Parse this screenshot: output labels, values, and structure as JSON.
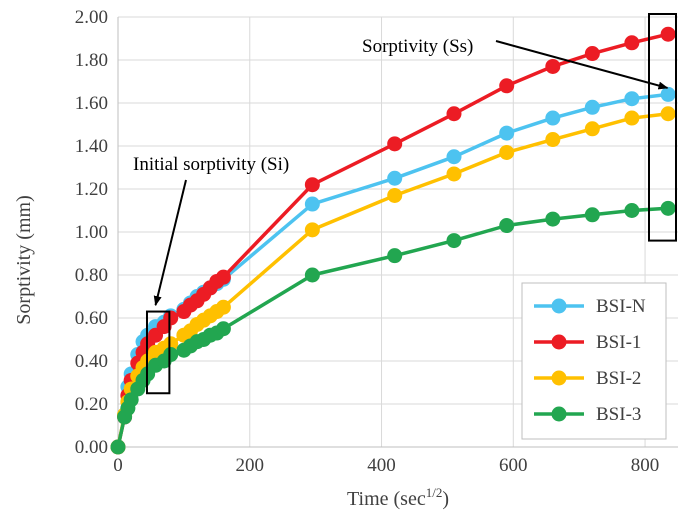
{
  "chart_data": {
    "type": "line",
    "title": "",
    "xlabel_main": "Time (sec",
    "xlabel_sup": "1/2",
    "xlabel_close": ")",
    "ylabel": "Sorptivity (mm)",
    "xlim": [
      0,
      850
    ],
    "ylim": [
      0,
      2.0
    ],
    "xticks": [
      "0",
      "200",
      "400",
      "600",
      "800"
    ],
    "yticks": [
      "0.00",
      "0.20",
      "0.40",
      "0.60",
      "0.80",
      "1.00",
      "1.20",
      "1.40",
      "1.60",
      "1.80",
      "2.00"
    ],
    "grid": true,
    "legend_position": "bottom-right",
    "series": [
      {
        "name": "BSI-N",
        "color": "#4dc3f0",
        "x": [
          0,
          10,
          15,
          20,
          30,
          38,
          45,
          57,
          70,
          80,
          100,
          110,
          120,
          130,
          140,
          150,
          160,
          295,
          420,
          510,
          590,
          660,
          720,
          780,
          835
        ],
        "y": [
          0,
          0.15,
          0.28,
          0.34,
          0.43,
          0.49,
          0.52,
          0.56,
          0.58,
          0.61,
          0.64,
          0.67,
          0.7,
          0.72,
          0.74,
          0.76,
          0.78,
          1.13,
          1.25,
          1.35,
          1.46,
          1.53,
          1.58,
          1.62,
          1.64
        ]
      },
      {
        "name": "BSI-1",
        "color": "#ec1c24",
        "x": [
          0,
          10,
          15,
          20,
          30,
          38,
          45,
          57,
          70,
          80,
          100,
          110,
          120,
          130,
          140,
          150,
          160,
          295,
          420,
          510,
          590,
          660,
          720,
          780,
          835
        ],
        "y": [
          0,
          0.14,
          0.24,
          0.31,
          0.39,
          0.44,
          0.48,
          0.52,
          0.56,
          0.6,
          0.63,
          0.66,
          0.68,
          0.71,
          0.74,
          0.77,
          0.79,
          1.22,
          1.41,
          1.55,
          1.68,
          1.77,
          1.83,
          1.88,
          1.92
        ]
      },
      {
        "name": "BSI-2",
        "color": "#ffc000",
        "x": [
          0,
          10,
          15,
          20,
          30,
          38,
          45,
          57,
          70,
          80,
          100,
          110,
          120,
          130,
          140,
          150,
          160,
          295,
          420,
          510,
          590,
          660,
          720,
          780,
          835
        ],
        "y": [
          0,
          0.15,
          0.21,
          0.27,
          0.33,
          0.37,
          0.4,
          0.44,
          0.46,
          0.48,
          0.52,
          0.54,
          0.57,
          0.59,
          0.61,
          0.63,
          0.65,
          1.01,
          1.17,
          1.27,
          1.37,
          1.43,
          1.48,
          1.53,
          1.55
        ]
      },
      {
        "name": "BSI-3",
        "color": "#22a650",
        "x": [
          0,
          10,
          15,
          20,
          30,
          38,
          45,
          57,
          70,
          80,
          100,
          110,
          120,
          130,
          140,
          150,
          160,
          295,
          420,
          510,
          590,
          660,
          720,
          780,
          835
        ],
        "y": [
          0,
          0.14,
          0.18,
          0.22,
          0.27,
          0.31,
          0.34,
          0.38,
          0.4,
          0.43,
          0.45,
          0.47,
          0.49,
          0.5,
          0.52,
          0.53,
          0.55,
          0.8,
          0.89,
          0.96,
          1.03,
          1.06,
          1.08,
          1.1,
          1.11
        ]
      }
    ],
    "annotations": [
      {
        "id": "initial",
        "text": "Initial sorptivity (Si)",
        "box_x": [
          44,
          78
        ],
        "box_y": [
          0.25,
          0.63
        ],
        "arrow_to": [
          57,
          0.66
        ]
      },
      {
        "id": "ss",
        "text": "Sorptivity (Ss)",
        "box_x": [
          820,
          850
        ],
        "box_y": [
          0.96,
          2.0
        ],
        "arrow_to": [
          834,
          1.67
        ]
      }
    ]
  }
}
